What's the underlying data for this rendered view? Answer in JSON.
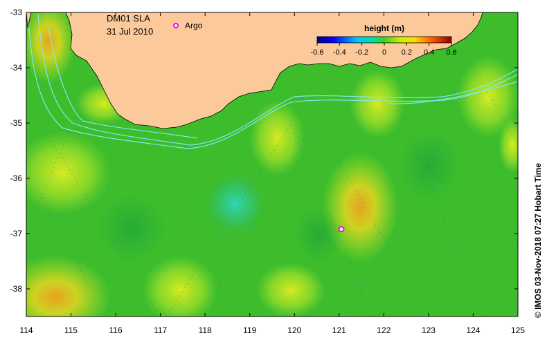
{
  "map": {
    "title": "DM01 SLA",
    "date": "31 Jul 2010",
    "argo_label": "Argo",
    "credit": "© IMOS 03-Nov-2018 07:27 Hobart Time",
    "x_ticks": [
      "114",
      "115",
      "116",
      "117",
      "118",
      "119",
      "120",
      "121",
      "122",
      "123",
      "124",
      "125"
    ],
    "y_ticks": [
      "-33",
      "-34",
      "-35",
      "-36",
      "-37",
      "-38"
    ],
    "lon_range": [
      114,
      125
    ],
    "lat_range": [
      -38.5,
      -33
    ],
    "argo_float": {
      "lon": 121.05,
      "lat": -36.92
    },
    "colors": {
      "land": "#fbc99a",
      "ocean_base": "#3fbf2a",
      "contour": "#7fe8f0",
      "argo": "#ff00ff"
    }
  },
  "colorbar": {
    "title": "height (m)",
    "ticks": [
      "-0.6",
      "-0.4",
      "-0.2",
      "0",
      "0.2",
      "0.4",
      "0.6"
    ]
  }
}
